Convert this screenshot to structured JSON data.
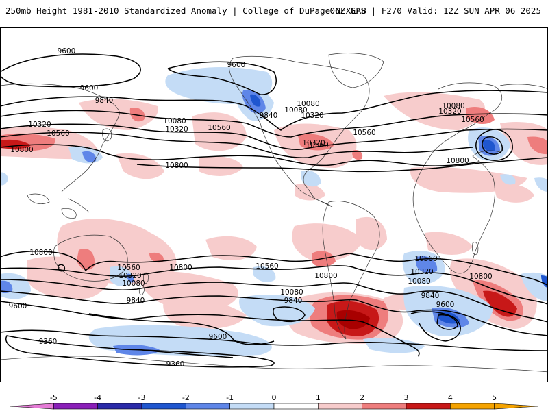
{
  "header": {
    "title": "250mb Height 1981-2010 Standardized Anomaly | College of DuPage NEXLAB",
    "run_info": "06Z GFS | F270 Valid: 12Z SUN APR 06 2025"
  },
  "colors": {
    "neg5": "#e57bd6",
    "neg4": "#8a1fb8",
    "neg3": "#1f3fbf",
    "neg2": "#5f86e8",
    "neg1": "#c4dcf6",
    "zero": "#ffffff",
    "pos1": "#f7cccc",
    "pos2": "#ee7d7d",
    "pos3": "#c71818",
    "pos4": "#b00000",
    "pos5": "#f5a300",
    "contour": "#000000",
    "coast": "#333333"
  },
  "colorbar": {
    "min": -6,
    "max": 6,
    "ticks": [
      "-5",
      "-4",
      "-3",
      "-2",
      "-1",
      "0",
      "1",
      "2",
      "3",
      "4",
      "5"
    ],
    "segments": [
      {
        "from": -5,
        "to": -4,
        "color": "#8a1fb8"
      },
      {
        "from": -4,
        "to": -3,
        "color": "#2a2aa8"
      },
      {
        "from": -3,
        "to": -2,
        "color": "#1f56cf"
      },
      {
        "from": -2,
        "to": -1,
        "color": "#5f86e8"
      },
      {
        "from": -1,
        "to": 0,
        "color": "#c4dcf6"
      },
      {
        "from": 0,
        "to": 1,
        "color": "#ffffff"
      },
      {
        "from": 1,
        "to": 2,
        "color": "#f7cccc"
      },
      {
        "from": 2,
        "to": 3,
        "color": "#ee7d7d"
      },
      {
        "from": 3,
        "to": 4,
        "color": "#c71818"
      },
      {
        "from": 4,
        "to": 5,
        "color": "#f5a300"
      }
    ]
  },
  "contour_labels": [
    "9600",
    "9600",
    "9600",
    "9840",
    "10080",
    "10080",
    "10320",
    "10320",
    "10560",
    "10560",
    "10800",
    "9840",
    "10080",
    "10320",
    "10560",
    "10800",
    "10320",
    "10560",
    "10080",
    "10320",
    "10560",
    "10800",
    "10560",
    "10320",
    "10080",
    "10800",
    "9600",
    "9840",
    "9840",
    "10560",
    "10800",
    "10560",
    "10320",
    "10080",
    "9840",
    "10080",
    "10800",
    "9600",
    "9360",
    "9600",
    "9360",
    "10800"
  ]
}
